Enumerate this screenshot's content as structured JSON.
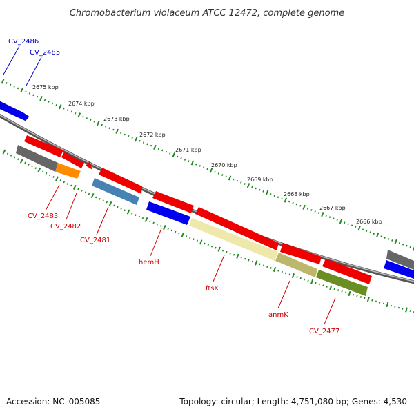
{
  "title": "Chromobacterium violaceum ATCC 12472, complete genome",
  "footer": {
    "accession": "Accession: NC_005085",
    "summary": "Topology: circular; Length: 4,751,080 bp; Genes: 4,530"
  },
  "kbp_labels": [
    "2675 kbp",
    "2674 kbp",
    "2673 kbp",
    "2672 kbp",
    "2671 kbp",
    "2670 kbp",
    "2669 kbp",
    "2668 kbp",
    "2667 kbp",
    "2666 kbp"
  ],
  "gene_labels": {
    "cv2486": "CV_2486",
    "cv2485": "CV_2485",
    "cv2483": "CV_2483",
    "cv2482": "CV_2482",
    "cv2481": "CV_2481",
    "hemH": "hemH",
    "ftsK": "ftsK",
    "anmK": "anmK",
    "cv2477": "CV_2477"
  },
  "colors": {
    "forward_label": "#0000cc",
    "reverse_label": "#cc0000",
    "backbone": "#888888",
    "ticks": "#228822",
    "cds_red": "#ee0000",
    "cds_blue": "#0000ee",
    "cds_gray": "#666666",
    "cds_orange": "#ff8c00",
    "cds_steelblue": "#4682b4",
    "cds_khaki": "#eee8aa",
    "cds_darkkhaki": "#bdb76b",
    "cds_olive": "#6b8e23"
  }
}
